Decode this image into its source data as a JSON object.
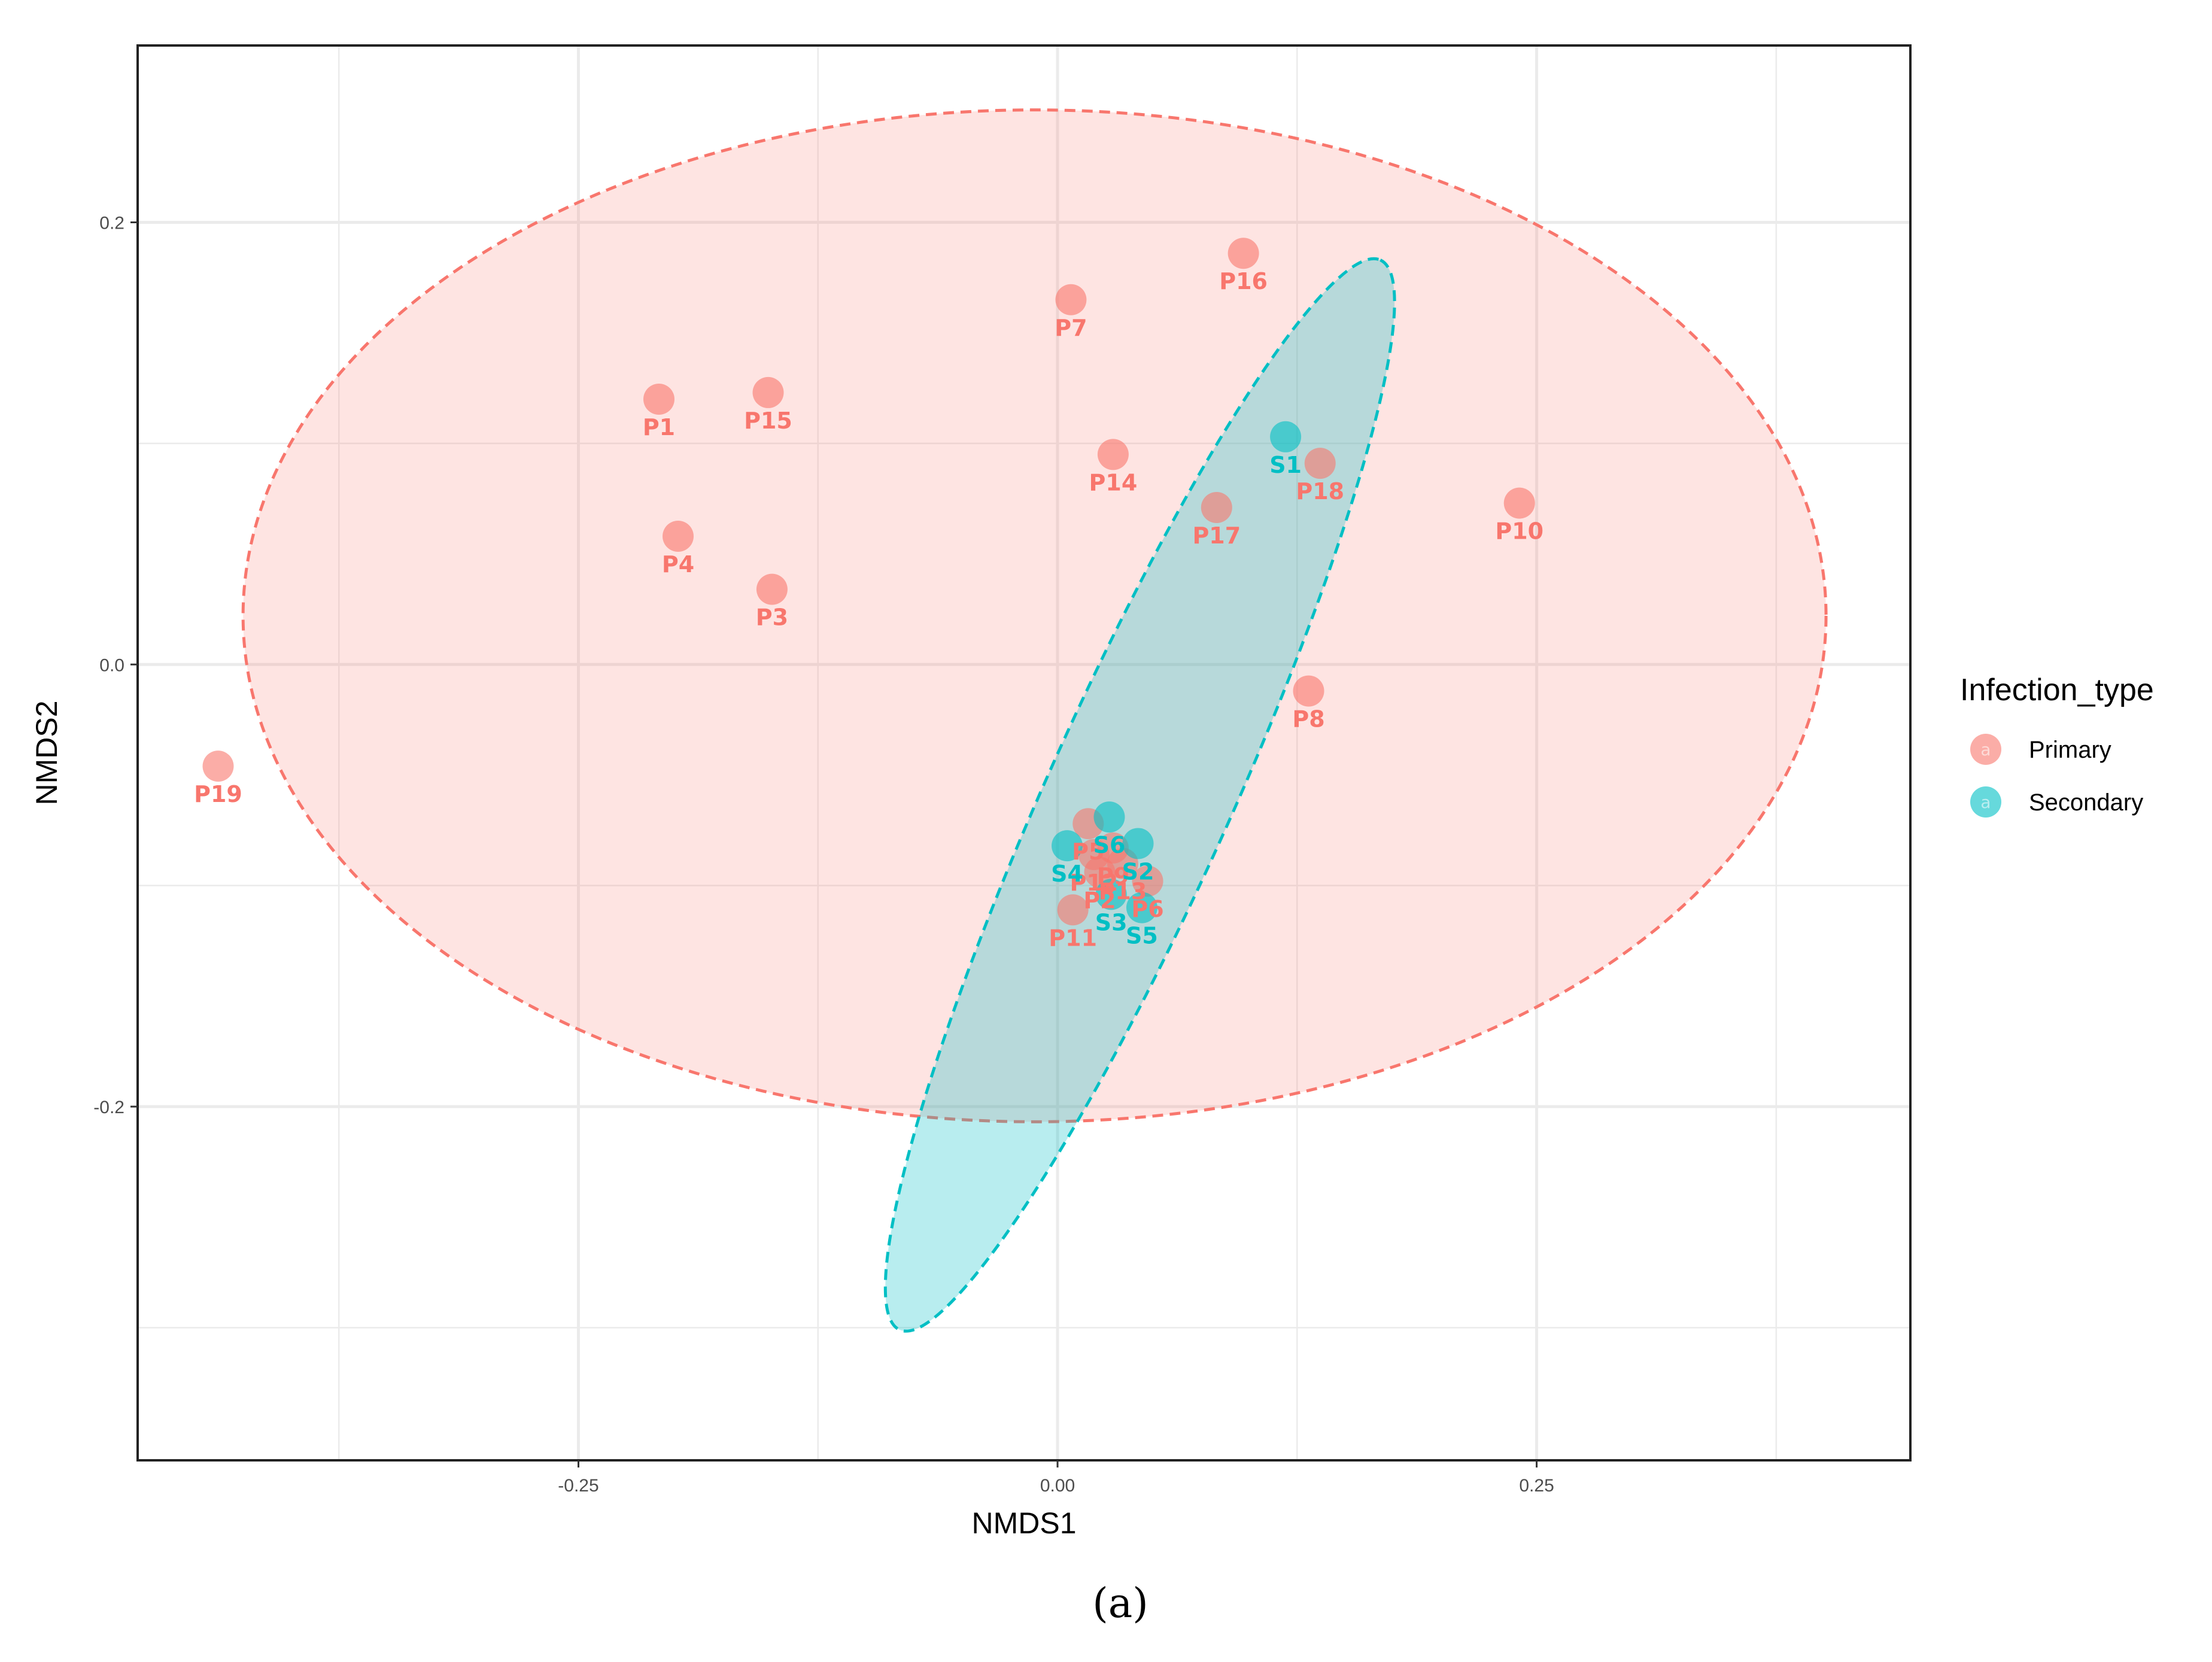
{
  "chart_data": {
    "type": "scatter",
    "xlabel": "NMDS1",
    "ylabel": "NMDS2",
    "xlim": [
      -0.48,
      0.445
    ],
    "ylim": [
      -0.36,
      0.28
    ],
    "x_ticks": [
      -0.25,
      0.0,
      0.25
    ],
    "x_tick_labels": [
      "-0.25",
      "0.00",
      "0.25"
    ],
    "y_ticks": [
      -0.2,
      0.0,
      0.2
    ],
    "y_tick_labels": [
      "-0.2",
      "0.0",
      "0.2"
    ],
    "grid": true,
    "legend": {
      "title": "Infection_type",
      "position": "right",
      "key_glyph": "a"
    },
    "series": [
      {
        "name": "Primary",
        "color": "#F8766D",
        "points": [
          {
            "label": "P1",
            "x": -0.208,
            "y": 0.12
          },
          {
            "label": "P15",
            "x": -0.151,
            "y": 0.123
          },
          {
            "label": "P7",
            "x": 0.007,
            "y": 0.165
          },
          {
            "label": "P16",
            "x": 0.097,
            "y": 0.186
          },
          {
            "label": "P14",
            "x": 0.029,
            "y": 0.095
          },
          {
            "label": "P18",
            "x": 0.137,
            "y": 0.091
          },
          {
            "label": "P17",
            "x": 0.083,
            "y": 0.071
          },
          {
            "label": "P10",
            "x": 0.241,
            "y": 0.073
          },
          {
            "label": "P4",
            "x": -0.198,
            "y": 0.058
          },
          {
            "label": "P3",
            "x": -0.149,
            "y": 0.034
          },
          {
            "label": "P8",
            "x": 0.131,
            "y": -0.012
          },
          {
            "label": "P19",
            "x": -0.438,
            "y": -0.046
          },
          {
            "label": "P11",
            "x": 0.008,
            "y": -0.111
          },
          {
            "label": "P5",
            "x": 0.016,
            "y": -0.072
          },
          {
            "label": "P6",
            "x": 0.047,
            "y": -0.098
          },
          {
            "label": "P2",
            "x": 0.022,
            "y": -0.094
          },
          {
            "label": "P9",
            "x": 0.029,
            "y": -0.083
          },
          {
            "label": "P12",
            "x": 0.019,
            "y": -0.086
          },
          {
            "label": "P13",
            "x": 0.034,
            "y": -0.09
          }
        ],
        "ellipse": {
          "cx": -0.012,
          "cy": 0.022,
          "rx": 0.413,
          "ry": 0.264,
          "angle_deg": 0
        }
      },
      {
        "name": "Secondary",
        "color": "#00BFC4",
        "points": [
          {
            "label": "S1",
            "x": 0.119,
            "y": 0.103
          },
          {
            "label": "S4",
            "x": 0.005,
            "y": -0.082
          },
          {
            "label": "S2",
            "x": 0.042,
            "y": -0.081
          },
          {
            "label": "S6",
            "x": 0.027,
            "y": -0.069
          },
          {
            "label": "S3",
            "x": 0.028,
            "y": -0.104
          },
          {
            "label": "S5",
            "x": 0.044,
            "y": -0.11
          }
        ],
        "ellipse": {
          "cx": 0.043,
          "cy": -0.059,
          "rx": 0.306,
          "ry": 0.048,
          "angle_deg": 65.8
        }
      }
    ]
  },
  "caption": "(a)"
}
